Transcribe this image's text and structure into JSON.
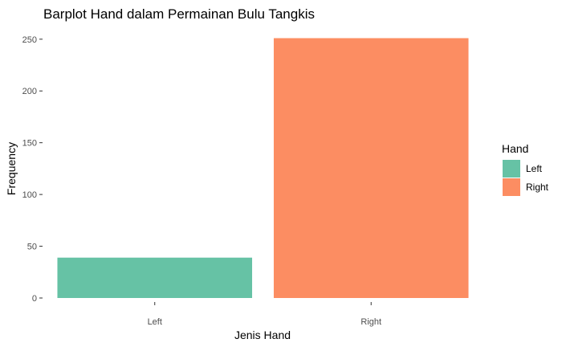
{
  "chart_data": {
    "type": "bar",
    "title": "Barplot Hand dalam Permainan Bulu Tangkis",
    "xlabel": "Jenis Hand",
    "ylabel": "Frequency",
    "categories": [
      "Left",
      "Right"
    ],
    "values": [
      39,
      251
    ],
    "colors": [
      "#66C2A5",
      "#FC8D62"
    ],
    "ylim": [
      0,
      260
    ],
    "yticks": [
      0,
      50,
      100,
      150,
      200,
      250
    ],
    "grid": false,
    "legend": {
      "title": "Hand",
      "placement": "right",
      "items": [
        {
          "label": "Left",
          "color": "#66C2A5"
        },
        {
          "label": "Right",
          "color": "#FC8D62"
        }
      ]
    }
  }
}
